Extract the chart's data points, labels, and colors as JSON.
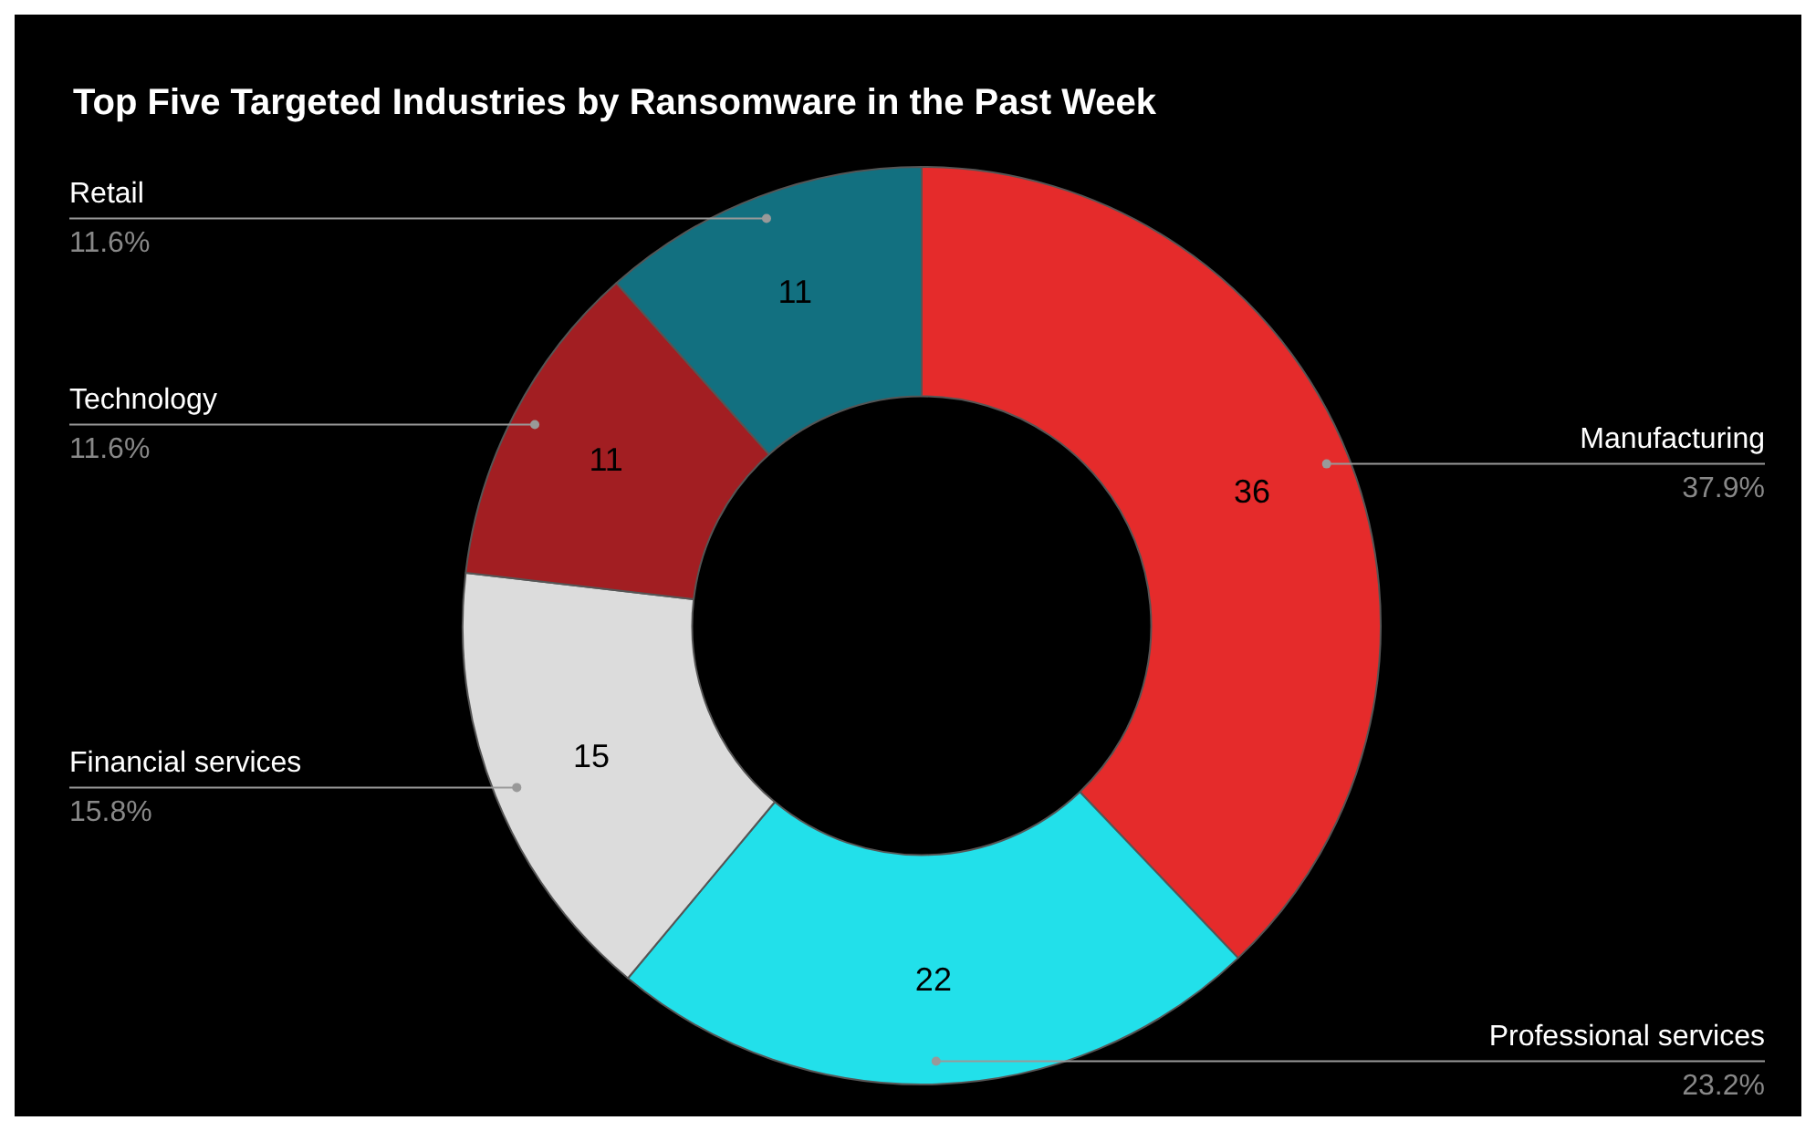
{
  "chart_data": {
    "type": "donut",
    "title": "Top Five Targeted Industries by Ransomware in the Past Week",
    "categories": [
      "Manufacturing",
      "Professional services",
      "Financial services",
      "Technology",
      "Retail"
    ],
    "values": [
      36,
      22,
      15,
      11,
      11
    ],
    "colors": [
      "#e52b2b",
      "#22e0ea",
      "#dcdcdc",
      "#a21e22",
      "#127080"
    ],
    "annotations": [
      "37.9%",
      "23.2%",
      "15.8%",
      "11.6%",
      "11.6%"
    ],
    "data_labels": true,
    "legend": false
  }
}
